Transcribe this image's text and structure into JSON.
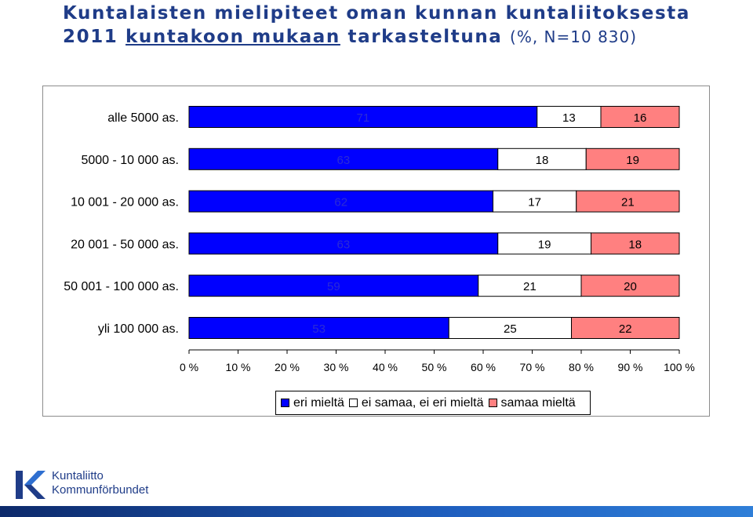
{
  "title": {
    "line1": "Kuntalaisten mielipiteet oman kunnan kuntaliitoksesta",
    "line2_prefix": "2011",
    "line2_underlined": "kuntakoon mukaan",
    "line2_rest": "tarkasteltuna",
    "line2_note": "(%, N=10 830)"
  },
  "chart_data": {
    "type": "bar",
    "orientation": "horizontal",
    "stacked": "percent",
    "categories": [
      "alle 5000 as.",
      "5000 - 10 000 as.",
      "10 001 - 20 000 as.",
      "20 001 - 50 000 as.",
      "50 001 - 100 000 as.",
      "yli 100 000 as."
    ],
    "series": [
      {
        "name": "eri mieltä",
        "values": [
          71,
          63,
          62,
          63,
          59,
          53
        ],
        "color": "#0000ff",
        "label_color": "#2b2bd6"
      },
      {
        "name": "ei samaa, ei eri mieltä",
        "values": [
          13,
          18,
          17,
          19,
          21,
          25
        ],
        "color": "#ffffff",
        "label_color": "#000000"
      },
      {
        "name": "samaa mieltä",
        "values": [
          16,
          19,
          21,
          18,
          20,
          22
        ],
        "color": "#ff8080",
        "label_color": "#000000"
      }
    ],
    "x_ticks": [
      "0 %",
      "10 %",
      "20 %",
      "30 %",
      "40 %",
      "50 %",
      "60 %",
      "70 %",
      "80 %",
      "90 %",
      "100 %"
    ],
    "xlim": [
      0,
      100
    ],
    "legend_position": "bottom"
  },
  "logo": {
    "line1": "Kuntaliitto",
    "line2": "Kommunförbundet"
  }
}
